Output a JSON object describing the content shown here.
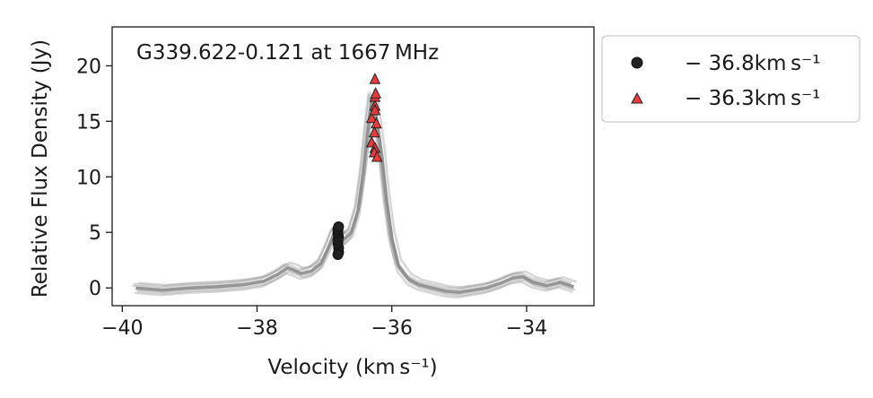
{
  "chart_data": {
    "type": "line",
    "title": "G339.622-0.121 at 1667 MHz",
    "xlabel": "Velocity (km s⁻¹)",
    "ylabel": "Relative Flux Density (Jy)",
    "xlim": [
      -40.15,
      -33.0
    ],
    "ylim": [
      -1.6,
      23.5
    ],
    "xticks": [
      -40,
      -38,
      -36,
      -34
    ],
    "xtick_labels": [
      "−40",
      "−38",
      "−36",
      "−34"
    ],
    "yticks": [
      0,
      5,
      10,
      15,
      20
    ],
    "ytick_labels": [
      "0",
      "5",
      "10",
      "15",
      "20"
    ],
    "grid": false,
    "legend_position": "outside-right-top",
    "spectrum": {
      "color": "#8c8c8c",
      "x": [
        -39.8,
        -39.4,
        -39.0,
        -38.6,
        -38.2,
        -37.9,
        -37.7,
        -37.55,
        -37.45,
        -37.35,
        -37.2,
        -37.05,
        -36.95,
        -36.85,
        -36.78,
        -36.72,
        -36.6,
        -36.5,
        -36.42,
        -36.36,
        -36.3,
        -36.26,
        -36.22,
        -36.15,
        -36.08,
        -36.0,
        -35.9,
        -35.75,
        -35.6,
        -35.4,
        -35.2,
        -35.0,
        -34.8,
        -34.6,
        -34.4,
        -34.2,
        -34.05,
        -33.9,
        -33.7,
        -33.5,
        -33.3
      ],
      "y": [
        0.0,
        -0.2,
        0.0,
        0.1,
        0.3,
        0.6,
        1.2,
        1.8,
        1.6,
        1.3,
        1.5,
        2.2,
        3.5,
        5.0,
        4.8,
        4.3,
        5.0,
        7.0,
        10.5,
        14.0,
        17.0,
        16.5,
        15.0,
        12.0,
        8.0,
        4.5,
        2.0,
        0.8,
        0.3,
        0.0,
        -0.3,
        -0.4,
        -0.2,
        0.0,
        0.4,
        0.9,
        1.0,
        0.5,
        0.2,
        0.5,
        0.1
      ]
    },
    "series": [
      {
        "name": "− 36.8km s⁻¹",
        "marker": "circle",
        "color": "#222222",
        "x": [
          -36.79,
          -36.79,
          -36.8,
          -36.8,
          -36.79,
          -36.8,
          -36.8,
          -36.8,
          -36.79,
          -36.8
        ],
        "y": [
          3.2,
          3.6,
          4.0,
          4.3,
          4.6,
          4.9,
          5.1,
          5.3,
          5.5,
          3.0
        ]
      },
      {
        "name": "− 36.3km s⁻¹",
        "marker": "triangle",
        "color": "#e8393b",
        "x": [
          -36.25,
          -36.25,
          -36.25,
          -36.3,
          -36.23,
          -36.26,
          -36.3,
          -36.25,
          -36.26,
          -36.22,
          -36.24,
          -36.25
        ],
        "y": [
          18.8,
          17.2,
          16.4,
          15.3,
          14.8,
          14.0,
          13.1,
          12.6,
          12.2,
          11.8,
          17.5,
          16.0
        ]
      }
    ]
  }
}
